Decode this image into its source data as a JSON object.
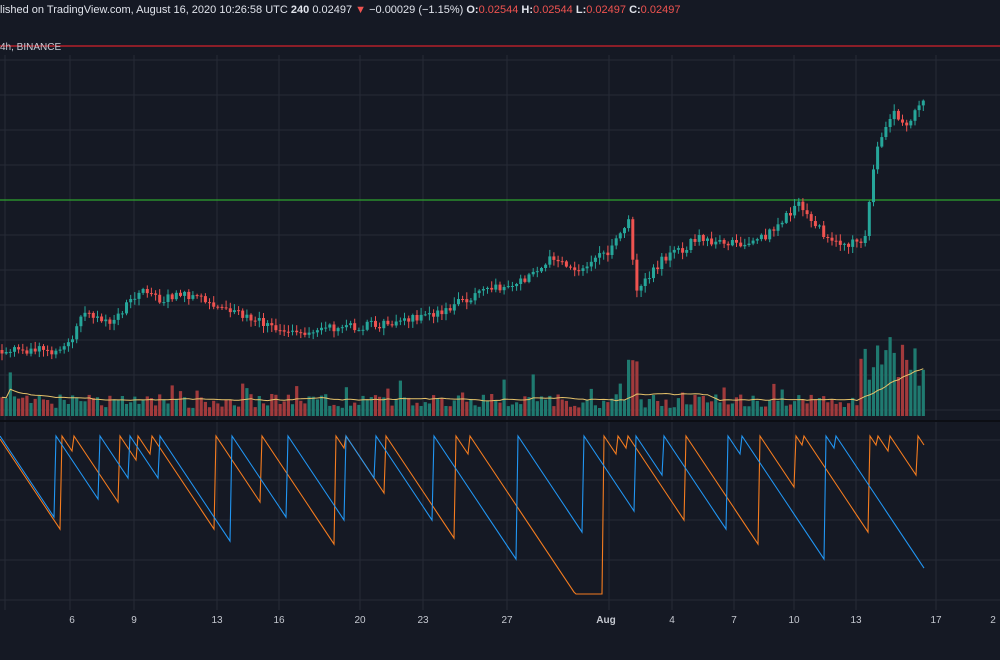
{
  "header": {
    "published": "lished on TradingView.com, August 16, 2020 10:26:58 UTC",
    "interval": "240",
    "last": "0.02497",
    "down_arrow": "▼",
    "change": "−0.00029 (−1.15%)",
    "o_label": "O:",
    "o_value": "0.02544",
    "h_label": "H:",
    "h_value": "0.02544",
    "l_label": "L:",
    "l_value": "0.02497",
    "c_label": "C:",
    "c_value": "0.02497"
  },
  "symbol": {
    "text": "4h, BINANCE"
  },
  "colors": {
    "background": "#151924",
    "grid": "#262a36",
    "up": "#26a69a",
    "down": "#ef5350",
    "volume_up": "#1f7a70",
    "volume_down": "#a13a3c",
    "volume_ma": "#e6c26a",
    "resistance_line": "#b3202a",
    "support_line": "#2fa32f",
    "aroon_up": "#f57c1f",
    "aroon_down": "#2196f3"
  },
  "x_axis": {
    "labels": [
      {
        "text": "6",
        "bold": false
      },
      {
        "text": "9",
        "bold": false
      },
      {
        "text": "13",
        "bold": false
      },
      {
        "text": "16",
        "bold": false
      },
      {
        "text": "20",
        "bold": false
      },
      {
        "text": "23",
        "bold": false
      },
      {
        "text": "27",
        "bold": false
      },
      {
        "text": "Aug",
        "bold": true
      },
      {
        "text": "4",
        "bold": false
      },
      {
        "text": "7",
        "bold": false
      },
      {
        "text": "10",
        "bold": false
      },
      {
        "text": "13",
        "bold": false
      },
      {
        "text": "17",
        "bold": false
      },
      {
        "text": "2",
        "bold": false
      }
    ]
  },
  "chart_data": {
    "type": "candlestick",
    "source": "BINANCE",
    "interval": "4h",
    "last_candle": {
      "open": 0.02544,
      "high": 0.02544,
      "low": 0.02497,
      "close": 0.02497
    },
    "change": -0.00029,
    "change_pct": -1.15,
    "horizontal_lines": [
      "resistance",
      "support"
    ],
    "panels": [
      "price",
      "volume",
      "aroon"
    ]
  }
}
